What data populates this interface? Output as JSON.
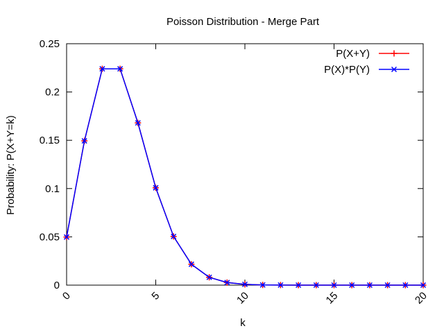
{
  "chart_data": {
    "type": "line",
    "title": "Poisson Distribution - Merge Part",
    "xlabel": "k",
    "ylabel": "Probability: P(X+Y=k)",
    "xlim": [
      0,
      20
    ],
    "ylim": [
      0,
      0.25
    ],
    "x_ticks": [
      "0",
      "5",
      "10",
      "15",
      "20"
    ],
    "y_ticks": [
      "0",
      "0.05",
      "0.1",
      "0.15",
      "0.2",
      "0.25"
    ],
    "grid": false,
    "legend_position": "top-right",
    "x": [
      0,
      1,
      2,
      3,
      4,
      5,
      6,
      7,
      8,
      9,
      10,
      11,
      12,
      13,
      14,
      15,
      16,
      17,
      18,
      19,
      20
    ],
    "series": [
      {
        "name": "P(X+Y)",
        "color": "#ff0000",
        "marker": "plus",
        "values": [
          0.0498,
          0.1494,
          0.224,
          0.224,
          0.168,
          0.1008,
          0.0504,
          0.0216,
          0.0081,
          0.0027,
          0.0008,
          0.0002,
          0.0001,
          0.0,
          0.0,
          0.0,
          0.0,
          0.0,
          0.0,
          0.0,
          0.0
        ]
      },
      {
        "name": "P(X)*P(Y)",
        "color": "#0000ff",
        "marker": "cross",
        "values": [
          0.0498,
          0.1494,
          0.224,
          0.224,
          0.168,
          0.1008,
          0.0504,
          0.0216,
          0.0081,
          0.0027,
          0.0008,
          0.0002,
          0.0001,
          0.0,
          0.0,
          0.0,
          0.0,
          0.0,
          0.0,
          0.0,
          0.0
        ]
      }
    ]
  }
}
